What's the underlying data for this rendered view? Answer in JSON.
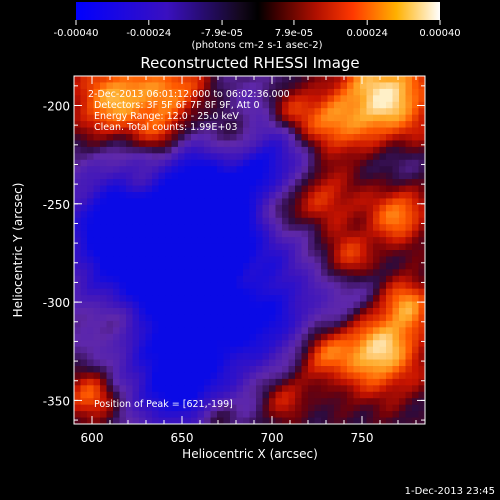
{
  "chart_data": {
    "type": "heatmap",
    "title": "Reconstructed RHESSI Image",
    "xlabel": "Heliocentric X (arcsec)",
    "ylabel": "Heliocentric Y (arcsec)",
    "xlim": [
      590,
      785
    ],
    "ylim": [
      -362,
      -185
    ],
    "x_ticks": [
      600,
      650,
      700,
      750
    ],
    "x_tick_labels": [
      "600",
      "650",
      "700",
      "750"
    ],
    "y_ticks": [
      -200,
      -250,
      -300,
      -350
    ],
    "y_tick_labels": [
      "-200",
      "-250",
      "-300",
      "-350"
    ],
    "colorbar": {
      "range": [
        -0.0004,
        0.0004
      ],
      "ticks": [
        -0.0004,
        -0.00024,
        -7.9e-05,
        7.9e-05,
        0.00024,
        0.0004
      ],
      "tick_labels": [
        "-0.00040",
        "-0.00024",
        "-7.9e-05",
        "7.9e-05",
        "0.00024",
        "0.00040"
      ],
      "unit_label": "(photons cm-2 s-1 asec-2)"
    },
    "annotations": [
      "2-Dec-2013 06:01:12.000 to 06:02:36.000",
      "Detectors: 3F 5F 6F 7F 8F 9F, Att 0",
      "Energy Range: 12.0 - 25.0 keV",
      "Clean. Total counts: 1.99E+03"
    ],
    "peak_label": "Position of Peak = [621,-199]",
    "peak": [
      621,
      -199
    ],
    "colors": {
      "neg": "#0000ff",
      "mid": "#000000",
      "pos_low": "#ff3000",
      "pos_high": "#ffffff"
    }
  },
  "footer": {
    "timestamp": "1-Dec-2013 23:45"
  }
}
